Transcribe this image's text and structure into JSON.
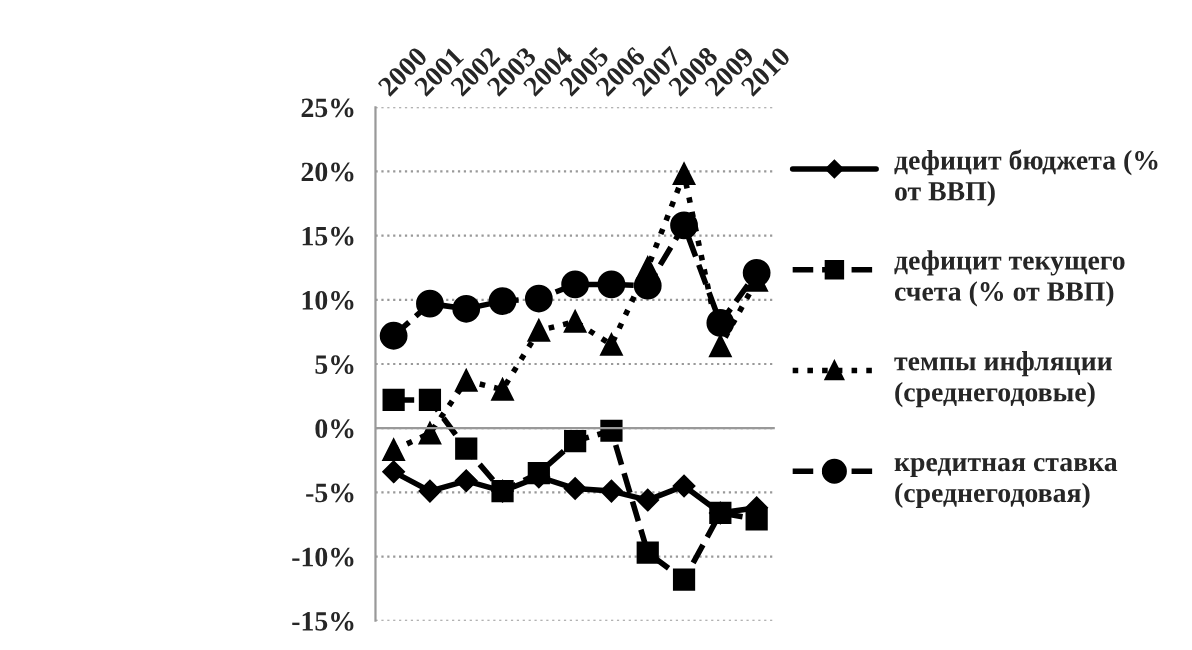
{
  "chart_data": {
    "type": "line",
    "categories": [
      "2000",
      "2001",
      "2002",
      "2003",
      "2004",
      "2005",
      "2006",
      "2007",
      "2008",
      "2009",
      "2010"
    ],
    "series": [
      {
        "name": "дефицит бюджета (% от ВВП)",
        "color": "#000000",
        "marker": "diamond",
        "line_style": "solid",
        "values": [
          -3.4,
          -4.9,
          -4.1,
          -4.9,
          -3.8,
          -4.7,
          -4.9,
          -5.6,
          -4.5,
          -6.6,
          -6.2
        ]
      },
      {
        "name": "дефицит текущего счета (% от ВВП)",
        "color": "#000000",
        "marker": "square",
        "line_style": "dashed",
        "values": [
          2.2,
          2.2,
          -1.6,
          -4.9,
          -3.5,
          -1.0,
          -0.2,
          -9.7,
          -11.8,
          -6.6,
          -7.1
        ]
      },
      {
        "name": "темпы инфляции (среднегодовые)",
        "color": "#000000",
        "marker": "triangle",
        "line_style": "dotted",
        "values": [
          -1.7,
          -0.4,
          3.7,
          3.0,
          7.6,
          8.3,
          6.5,
          12.5,
          19.8,
          6.4,
          11.5
        ]
      },
      {
        "name": "кредитная ставка (среднегодовая)",
        "color": "#000000",
        "marker": "circle",
        "line_style": "dashed",
        "values": [
          7.2,
          9.7,
          9.3,
          9.9,
          10.1,
          11.2,
          11.2,
          11.1,
          15.8,
          8.2,
          12.1
        ]
      }
    ],
    "ylim": [
      -15,
      25
    ],
    "yticks": [
      {
        "value": -15,
        "label": "-15%"
      },
      {
        "value": -10,
        "label": "-10%"
      },
      {
        "value": -5,
        "label": "-5%"
      },
      {
        "value": 0,
        "label": "0%"
      },
      {
        "value": 5,
        "label": "5%"
      },
      {
        "value": 10,
        "label": "10%"
      },
      {
        "value": 15,
        "label": "15%"
      },
      {
        "value": 20,
        "label": "20%"
      },
      {
        "value": 25,
        "label": "25%"
      }
    ],
    "grid": "y",
    "legend": "right"
  }
}
